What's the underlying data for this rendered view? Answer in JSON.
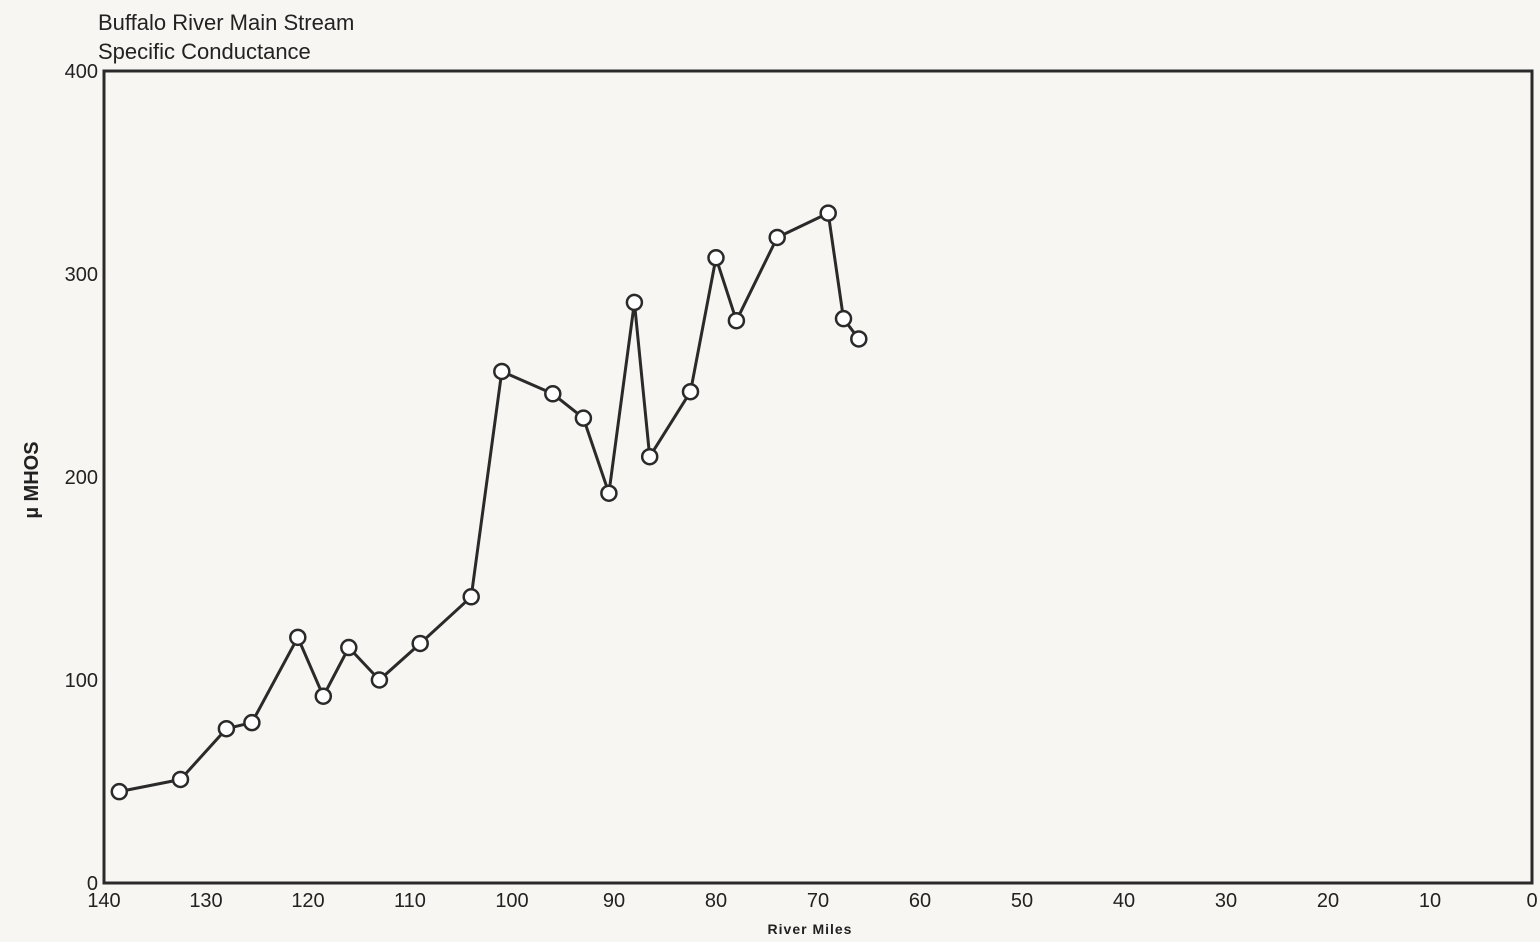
{
  "chart_data": {
    "type": "line",
    "title": "Buffalo River Main Stream",
    "subtitle": "Specific Conductance",
    "xlabel": "River Miles",
    "ylabel": "µ MHOS",
    "xlim": [
      140,
      0
    ],
    "ylim": [
      0,
      400
    ],
    "x_ticks": [
      140,
      130,
      120,
      110,
      100,
      90,
      80,
      70,
      60,
      50,
      40,
      30,
      20,
      10,
      0
    ],
    "y_ticks": [
      0,
      100,
      200,
      300,
      400
    ],
    "grid": false,
    "marker": "open-circle",
    "series": [
      {
        "x": [
          138.5,
          132.5,
          128,
          125.5,
          121,
          118.5,
          116,
          113,
          109,
          104,
          101,
          96,
          93,
          90.5,
          88,
          86.5,
          82.5,
          80,
          78,
          74,
          69,
          67.5,
          66
        ],
        "y": [
          45,
          51,
          76,
          79,
          121,
          92,
          116,
          100,
          118,
          141,
          252,
          241,
          229,
          192,
          286,
          210,
          242,
          308,
          277,
          318,
          330,
          278,
          268
        ]
      }
    ],
    "colors": {
      "line": "#2a2a2a",
      "frame": "#2a2a2a",
      "marker_fill": "#ffffff"
    }
  }
}
